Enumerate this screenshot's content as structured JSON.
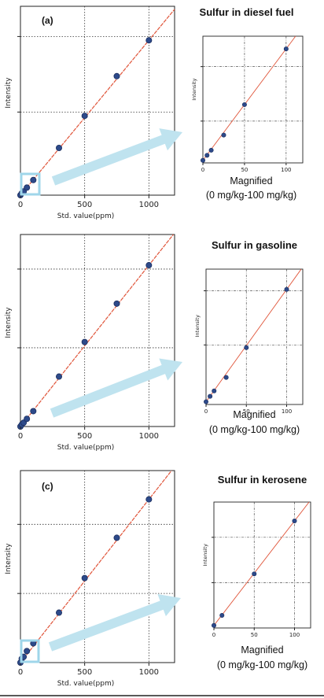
{
  "chart_data": [
    {
      "type": "scatter",
      "panel": "main",
      "panel_label": "(a)",
      "xlabel": "Std. value(ppm)",
      "ylabel": "Intensity",
      "xlim": [
        0,
        1200
      ],
      "x_ticks": [
        0,
        500,
        1000
      ],
      "x": [
        0,
        10,
        25,
        50,
        100,
        300,
        500,
        750,
        1000
      ],
      "y_frac": [
        0.0,
        0.01,
        0.02,
        0.04,
        0.08,
        0.25,
        0.42,
        0.63,
        0.82
      ],
      "fit_line": true,
      "grid": "dotted at x=500,1000 and two y levels"
    },
    {
      "type": "scatter",
      "panel": "magnified",
      "title": "Sulfur in diesel fuel",
      "ylabel": "Intensity",
      "xlim": [
        0,
        120
      ],
      "x_ticks": [
        0,
        50,
        100
      ],
      "x": [
        0,
        5,
        10,
        25,
        50,
        100
      ],
      "y_frac": [
        0.02,
        0.06,
        0.1,
        0.22,
        0.46,
        0.9
      ],
      "caption_line1": "Magnified",
      "caption_line2": "(0 mg/kg-100 mg/kg)"
    },
    {
      "type": "scatter",
      "panel": "main",
      "panel_label": "",
      "xlabel": "Std. value(ppm)",
      "ylabel": "Intensity",
      "xlim": [
        0,
        1200
      ],
      "x_ticks": [
        0,
        500,
        1000
      ],
      "x": [
        0,
        10,
        25,
        50,
        100,
        300,
        500,
        750,
        1000
      ],
      "y_frac": [
        0.0,
        0.01,
        0.02,
        0.04,
        0.08,
        0.26,
        0.44,
        0.64,
        0.84
      ],
      "fit_line": true
    },
    {
      "type": "scatter",
      "panel": "magnified",
      "title": "Sulfur in gasoline",
      "ylabel": "Intensity",
      "xlim": [
        0,
        120
      ],
      "x_ticks": [
        0,
        50,
        100
      ],
      "x": [
        0,
        5,
        10,
        25,
        50,
        100
      ],
      "y_frac": [
        0.02,
        0.06,
        0.1,
        0.2,
        0.42,
        0.85
      ],
      "caption_line1": "Magnified",
      "caption_line2": "(0 mg/kg-100 mg/kg)"
    },
    {
      "type": "scatter",
      "panel": "main",
      "panel_label": "(c)",
      "xlabel": "Std. value(ppm)",
      "ylabel": "Intensity",
      "xlim": [
        0,
        1200
      ],
      "x_ticks": [
        0,
        500,
        1000
      ],
      "x": [
        0,
        10,
        25,
        50,
        100,
        300,
        500,
        750,
        1000
      ],
      "y_frac": [
        0.0,
        0.02,
        0.03,
        0.06,
        0.1,
        0.26,
        0.44,
        0.65,
        0.85
      ],
      "fit_line": true
    },
    {
      "type": "scatter",
      "panel": "magnified",
      "title": "Sulfur in kerosene",
      "ylabel": "Intensity",
      "xlim": [
        0,
        120
      ],
      "x_ticks": [
        0,
        50,
        100
      ],
      "x": [
        0,
        10,
        50,
        100
      ],
      "y_frac": [
        0.02,
        0.1,
        0.43,
        0.85
      ],
      "caption_line1": "Magnified",
      "caption_line2": "(0 mg/kg-100 mg/kg)"
    }
  ],
  "colors": {
    "marker": "#2d4a8a",
    "marker_edge": "#1b2e5e",
    "fit_line": "#e0553a",
    "arrow": "#bfe3ef",
    "zoom_box": "#9fd6ea"
  }
}
